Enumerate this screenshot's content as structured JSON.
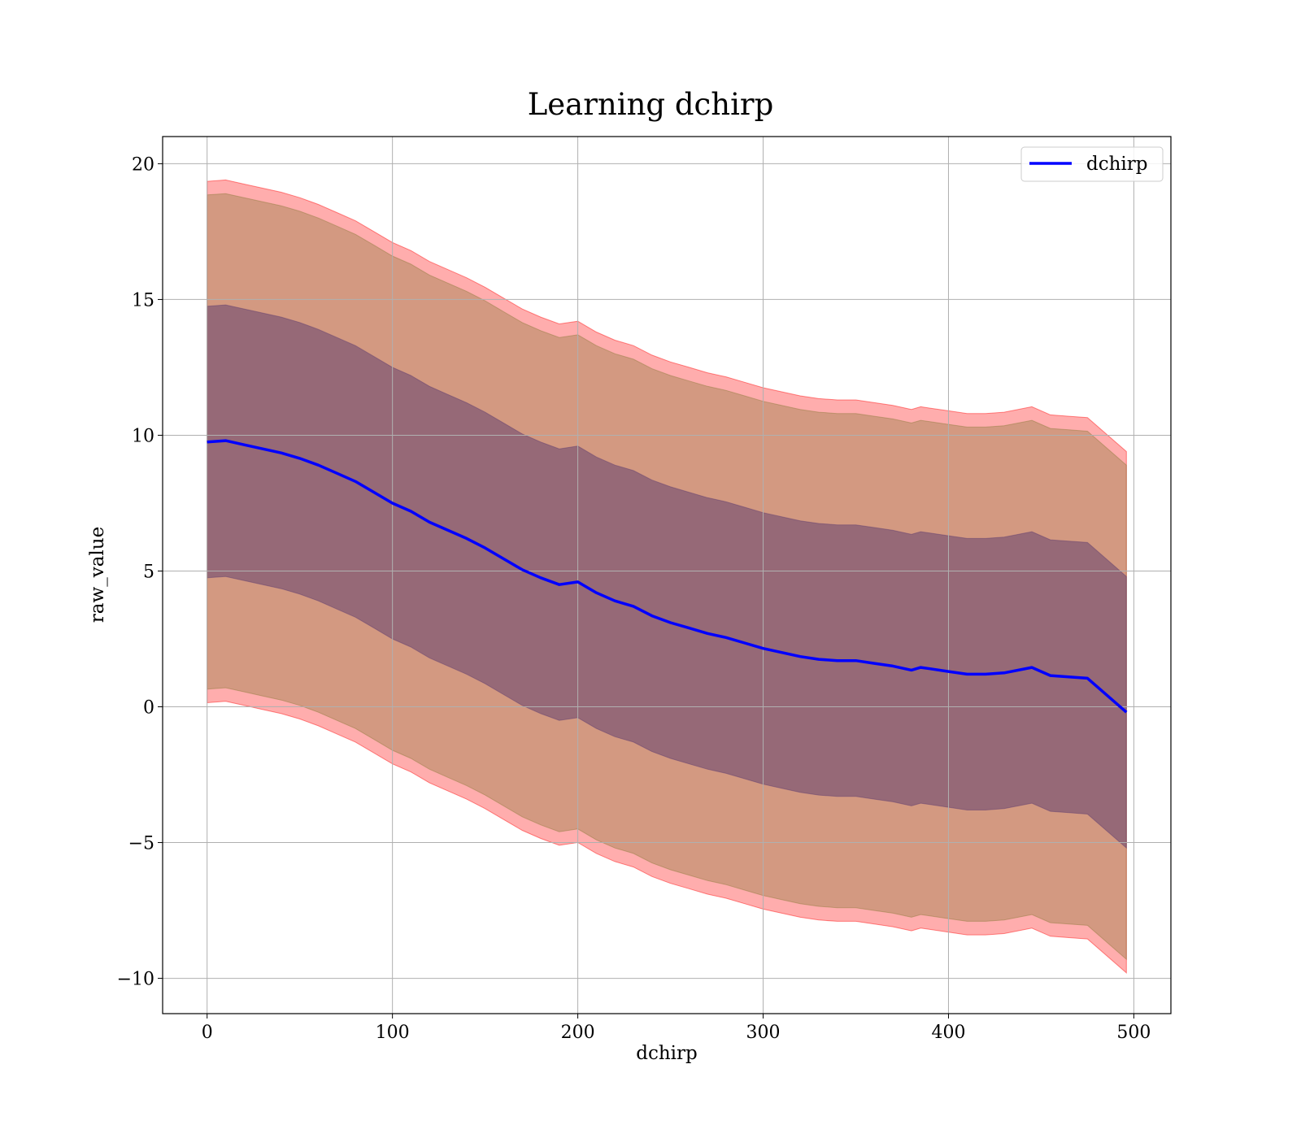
{
  "chart_data": {
    "type": "line",
    "title": "Learning dchirp",
    "xlabel": "dchirp",
    "ylabel": "raw_value",
    "xlim": [
      -24,
      520
    ],
    "ylim": [
      -11.3,
      21
    ],
    "xticks": [
      0,
      100,
      200,
      300,
      400,
      500
    ],
    "xtick_labels": [
      "0",
      "100",
      "200",
      "300",
      "400",
      "500"
    ],
    "yticks": [
      -10,
      -5,
      0,
      5,
      10,
      15,
      20
    ],
    "ytick_labels": [
      "−10",
      "−5",
      "0",
      "5",
      "10",
      "15",
      "20"
    ],
    "grid": true,
    "legend": {
      "position": "top-right",
      "entries": [
        "dchirp"
      ]
    },
    "colors": {
      "line": "#0000ff",
      "band_outer": "#ff0000",
      "band_mid": "#8b7a3a",
      "band_inner": "#5a3a6e",
      "grid": "#b0b0b0"
    },
    "x": [
      0,
      10,
      20,
      30,
      40,
      50,
      60,
      70,
      80,
      90,
      100,
      110,
      120,
      130,
      140,
      150,
      160,
      170,
      180,
      190,
      200,
      210,
      220,
      230,
      240,
      250,
      260,
      270,
      280,
      290,
      300,
      310,
      320,
      330,
      340,
      350,
      360,
      370,
      380,
      385,
      390,
      400,
      410,
      420,
      430,
      445,
      455,
      465,
      475,
      496
    ],
    "series": [
      {
        "name": "dchirp",
        "values": [
          9.75,
          9.8,
          9.65,
          9.5,
          9.35,
          9.15,
          8.9,
          8.6,
          8.3,
          7.9,
          7.5,
          7.2,
          6.8,
          6.5,
          6.2,
          5.85,
          5.45,
          5.05,
          4.75,
          4.5,
          4.6,
          4.2,
          3.9,
          3.7,
          3.35,
          3.1,
          2.9,
          2.7,
          2.55,
          2.35,
          2.15,
          2.0,
          1.85,
          1.75,
          1.7,
          1.7,
          1.6,
          1.5,
          1.35,
          1.45,
          1.4,
          1.3,
          1.2,
          1.2,
          1.25,
          1.45,
          1.15,
          1.1,
          1.05,
          -0.2
        ]
      }
    ],
    "band_offsets": {
      "outer": 9.6,
      "mid": 9.1,
      "inner": 5.0
    }
  }
}
